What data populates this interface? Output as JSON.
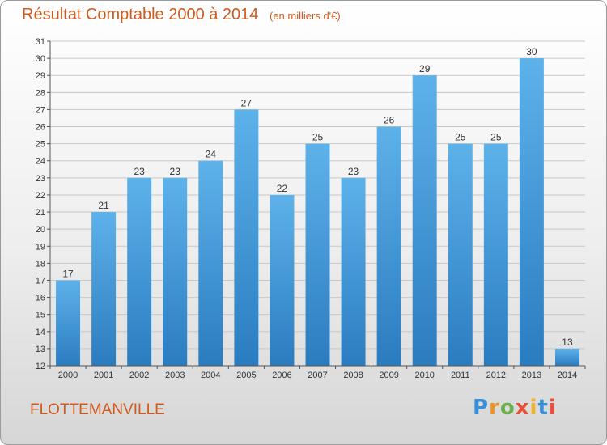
{
  "header": {
    "title": "Résultat Comptable 2000 à 2014",
    "subtitle": "(en milliers d'€)"
  },
  "footer": {
    "town": "FLOTTEMANVILLE",
    "logo_letters": [
      "P",
      "r",
      "o",
      "x",
      "i",
      "t",
      "i"
    ],
    "logo_colors": [
      "#3a8fd8",
      "#e8922a",
      "#6ab04c",
      "#e94e3c",
      "#f0b429",
      "#3a8fd8",
      "#e94e3c"
    ]
  },
  "colors": {
    "title": "#d05a1e",
    "bar_top": "#5eb2ea",
    "bar_bottom": "#2a7cc0",
    "grid": "#c8c8c8"
  },
  "chart_data": {
    "type": "bar",
    "categories": [
      "2000",
      "2001",
      "2002",
      "2003",
      "2004",
      "2005",
      "2006",
      "2007",
      "2008",
      "2009",
      "2010",
      "2011",
      "2012",
      "2013",
      "2014"
    ],
    "values": [
      17,
      21,
      23,
      23,
      24,
      27,
      22,
      25,
      23,
      26,
      29,
      25,
      25,
      30,
      13
    ],
    "ylim": [
      12,
      31
    ],
    "yticks": [
      12,
      13,
      14,
      15,
      16,
      17,
      18,
      19,
      20,
      21,
      22,
      23,
      24,
      25,
      26,
      27,
      28,
      29,
      30,
      31
    ],
    "grid": true,
    "data_labels": true
  }
}
